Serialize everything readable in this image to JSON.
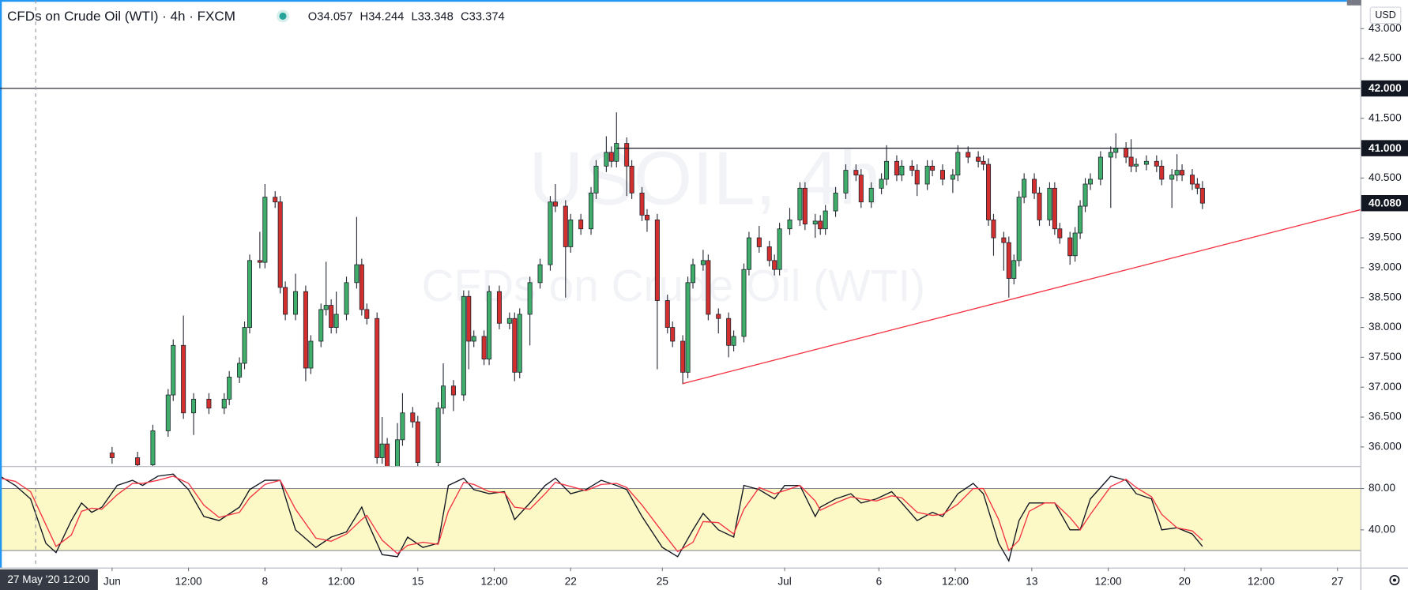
{
  "chart_data": [
    {
      "type": "candlestick",
      "title": "CFDs on Crude Oil (WTI) · 4h · FXCM",
      "ohlc_legend": [
        {
          "label": "O",
          "value": 34.057
        },
        {
          "label": "H",
          "value": 34.244
        },
        {
          "label": "L",
          "value": 33.348
        },
        {
          "label": "C",
          "value": 33.374
        }
      ],
      "watermark": [
        "USOIL, 4h",
        "CFDs on Crude Oil (WTI)"
      ],
      "currency": "USD",
      "x": [
        0,
        5,
        8,
        11,
        12,
        14,
        16,
        19,
        22,
        23,
        25,
        26,
        27,
        29,
        30,
        32,
        33,
        34,
        36,
        38,
        39,
        41,
        42,
        43,
        44,
        46,
        48,
        49,
        50,
        52,
        53,
        54,
        56,
        57,
        59,
        60,
        64,
        65,
        67,
        69,
        70,
        71,
        73,
        74,
        76,
        78,
        79,
        80,
        82,
        84,
        86,
        87,
        89,
        90,
        92,
        94,
        95,
        97,
        98,
        99,
        101,
        102,
        104,
        105,
        107,
        109,
        110,
        112,
        113,
        114,
        116,
        117,
        119,
        121,
        122,
        124,
        125,
        127,
        129,
        130,
        131,
        133,
        135,
        136,
        138,
        139,
        140,
        142,
        144,
        146,
        147,
        149,
        151,
        152,
        154,
        155,
        157,
        158,
        160,
        161,
        163,
        165,
        166,
        168,
        170,
        171,
        172,
        173,
        175,
        176,
        177,
        178,
        179,
        181,
        182,
        184,
        185,
        186,
        188,
        189,
        190,
        191,
        192,
        194,
        196,
        197,
        199,
        200,
        201,
        203,
        205,
        206,
        208,
        209,
        210,
        212,
        213,
        214
      ],
      "open": [
        35.9,
        35.82,
        35.7,
        36.27,
        36.87,
        37.7,
        36.57,
        36.8,
        36.65,
        36.8,
        37.17,
        37.4,
        38.0,
        39.12,
        39.09,
        40.18,
        40.1,
        38.67,
        38.22,
        38.6,
        37.32,
        37.77,
        38.3,
        38.37,
        38.0,
        38.22,
        38.75,
        39.05,
        38.3,
        38.15,
        35.82,
        36.05,
        35.67,
        36.12,
        36.57,
        36.42,
        35.74,
        36.65,
        37.02,
        36.87,
        38.52,
        37.77,
        37.85,
        37.47,
        38.6,
        38.07,
        38.15,
        37.25,
        38.22,
        38.75,
        39.05,
        40.1,
        40.03,
        39.35,
        39.8,
        39.65,
        40.25,
        40.7,
        40.93,
        40.78,
        41.08,
        40.7,
        40.25,
        39.88,
        39.8,
        38.45,
        38.0,
        37.77,
        37.25,
        38.75,
        39.05,
        39.12,
        38.22,
        38.15,
        37.7,
        37.85,
        38.97,
        39.5,
        39.35,
        39.12,
        38.97,
        39.65,
        39.8,
        40.33,
        39.73,
        39.78,
        39.65,
        39.95,
        40.25,
        40.63,
        40.55,
        40.1,
        40.33,
        40.48,
        40.78,
        40.55,
        40.7,
        40.63,
        40.4,
        40.7,
        40.63,
        40.48,
        40.55,
        40.93,
        40.85,
        40.78,
        40.73,
        39.8,
        39.5,
        39.42,
        38.82,
        39.12,
        40.18,
        40.48,
        40.25,
        39.8,
        40.33,
        39.65,
        39.5,
        39.2,
        39.58,
        40.03,
        40.4,
        40.48,
        40.85,
        40.93,
        41.0,
        40.85,
        40.7,
        40.73,
        40.78,
        40.7,
        40.48,
        40.55,
        40.63,
        40.55,
        40.4,
        40.33
      ],
      "high": [
        36.0,
        35.92,
        36.37,
        36.97,
        37.8,
        38.2,
        36.9,
        36.9,
        36.9,
        37.27,
        37.5,
        38.1,
        39.22,
        39.6,
        40.4,
        40.28,
        40.2,
        38.77,
        38.9,
        38.7,
        37.87,
        38.4,
        39.1,
        38.47,
        38.6,
        38.85,
        39.85,
        39.15,
        38.4,
        38.25,
        36.5,
        36.15,
        36.4,
        36.9,
        36.67,
        36.52,
        36.75,
        37.4,
        37.12,
        38.62,
        38.62,
        37.95,
        37.95,
        38.7,
        38.7,
        38.25,
        38.25,
        38.32,
        38.85,
        39.15,
        40.2,
        40.4,
        40.13,
        39.9,
        39.9,
        40.35,
        40.8,
        41.2,
        41.03,
        41.6,
        41.18,
        40.8,
        40.35,
        39.98,
        39.9,
        38.55,
        38.1,
        37.87,
        38.85,
        39.15,
        39.3,
        39.22,
        38.32,
        38.25,
        37.95,
        39.07,
        39.6,
        39.7,
        39.45,
        39.22,
        39.75,
        40.0,
        40.43,
        40.43,
        39.9,
        39.88,
        40.05,
        40.35,
        40.73,
        40.73,
        40.65,
        40.43,
        40.58,
        41.05,
        40.88,
        40.8,
        40.8,
        40.73,
        40.8,
        40.8,
        40.73,
        40.65,
        41.05,
        41.03,
        40.95,
        40.88,
        40.83,
        39.9,
        39.6,
        39.52,
        39.22,
        40.28,
        40.58,
        40.58,
        40.35,
        40.43,
        40.43,
        39.75,
        39.6,
        39.68,
        40.13,
        40.5,
        40.58,
        40.95,
        41.03,
        41.25,
        41.1,
        41.15,
        40.83,
        40.88,
        40.88,
        40.8,
        40.65,
        40.9,
        40.73,
        40.65,
        40.5,
        40.45
      ],
      "low": [
        35.72,
        35.6,
        35.6,
        36.17,
        36.77,
        36.47,
        36.2,
        36.55,
        36.55,
        36.7,
        37.07,
        37.3,
        37.9,
        38.99,
        38.99,
        40.0,
        38.57,
        38.12,
        38.12,
        37.1,
        37.22,
        37.67,
        38.2,
        37.9,
        37.9,
        38.12,
        38.65,
        38.2,
        38.05,
        35.72,
        35.72,
        35.57,
        35.57,
        36.02,
        36.32,
        35.64,
        35.64,
        36.55,
        36.6,
        36.77,
        37.3,
        37.67,
        37.37,
        37.37,
        37.97,
        37.97,
        37.1,
        37.15,
        37.7,
        38.65,
        38.95,
        39.93,
        38.5,
        39.25,
        39.55,
        39.55,
        40.15,
        40.6,
        40.68,
        40.68,
        40.2,
        40.15,
        39.78,
        39.6,
        37.3,
        37.9,
        37.67,
        37.05,
        37.15,
        38.65,
        38.95,
        38.12,
        37.9,
        37.5,
        37.6,
        37.75,
        38.87,
        39.25,
        39.02,
        38.87,
        38.87,
        39.55,
        39.7,
        39.63,
        39.5,
        39.55,
        39.55,
        39.85,
        40.15,
        40.45,
        40.0,
        40.0,
        40.23,
        40.38,
        40.45,
        40.45,
        40.53,
        40.2,
        40.3,
        40.53,
        40.38,
        40.25,
        40.45,
        40.75,
        40.68,
        40.63,
        39.7,
        39.2,
        38.95,
        38.5,
        38.72,
        39.02,
        40.08,
        40.15,
        39.7,
        39.7,
        39.55,
        39.4,
        39.05,
        39.1,
        39.48,
        39.93,
        40.3,
        40.38,
        40.0,
        40.83,
        40.75,
        40.6,
        40.6,
        40.63,
        40.6,
        40.38,
        40.0,
        40.45,
        40.45,
        40.3,
        40.23,
        39.98
      ],
      "close": [
        35.82,
        35.7,
        36.27,
        36.87,
        37.7,
        36.57,
        36.8,
        36.65,
        36.8,
        37.17,
        37.4,
        38.0,
        39.12,
        39.09,
        40.18,
        40.1,
        38.67,
        38.22,
        38.6,
        37.32,
        37.77,
        38.3,
        38.37,
        38.0,
        38.22,
        38.75,
        39.05,
        38.3,
        38.15,
        35.82,
        36.05,
        35.67,
        36.12,
        36.57,
        36.42,
        35.74,
        36.65,
        37.02,
        36.87,
        38.52,
        37.77,
        37.85,
        37.47,
        38.6,
        38.07,
        38.15,
        37.25,
        38.22,
        38.75,
        39.05,
        40.1,
        40.03,
        39.35,
        39.8,
        39.65,
        40.25,
        40.7,
        40.93,
        40.78,
        41.08,
        40.7,
        40.25,
        39.88,
        39.8,
        38.45,
        38.0,
        37.77,
        37.25,
        38.75,
        39.05,
        39.12,
        38.22,
        38.15,
        37.7,
        37.85,
        38.97,
        39.5,
        39.35,
        39.12,
        38.97,
        39.65,
        39.8,
        40.33,
        39.73,
        39.78,
        39.65,
        39.95,
        40.25,
        40.63,
        40.55,
        40.1,
        40.33,
        40.48,
        40.78,
        40.55,
        40.7,
        40.63,
        40.4,
        40.7,
        40.63,
        40.48,
        40.55,
        40.93,
        40.85,
        40.78,
        40.73,
        39.8,
        39.5,
        39.42,
        38.82,
        39.12,
        40.18,
        40.48,
        40.25,
        39.8,
        40.33,
        39.65,
        39.5,
        39.2,
        39.58,
        40.03,
        40.4,
        40.48,
        40.85,
        40.93,
        41.0,
        40.85,
        40.7,
        40.73,
        40.78,
        40.7,
        40.48,
        40.55,
        40.63,
        40.55,
        40.4,
        40.33,
        40.08
      ],
      "up_color": "#3fae6a",
      "down_color": "#d32f2f",
      "xlim": [
        -22,
        245
      ],
      "ylim": [
        35.68,
        43.48
      ],
      "yticks": [
        {
          "value": 43,
          "label": "43.000"
        },
        {
          "value": 42.5,
          "label": "42.500"
        },
        {
          "value": 41.5,
          "label": "41.500"
        },
        {
          "value": 40.5,
          "label": "40.500"
        },
        {
          "value": 39.5,
          "label": "39.500"
        },
        {
          "value": 39,
          "label": "39.000"
        },
        {
          "value": 38.5,
          "label": "38.500"
        },
        {
          "value": 38,
          "label": "38.000"
        },
        {
          "value": 37.5,
          "label": "37.500"
        },
        {
          "value": 37,
          "label": "37.000"
        },
        {
          "value": 36.5,
          "label": "36.500"
        },
        {
          "value": 36,
          "label": "36.000"
        }
      ],
      "xticks": [
        {
          "value": 0,
          "label": "Jun"
        },
        {
          "value": 15,
          "label": "12:00"
        },
        {
          "value": 30,
          "label": "8"
        },
        {
          "value": 45,
          "label": "12:00"
        },
        {
          "value": 60,
          "label": "15"
        },
        {
          "value": 75,
          "label": "12:00"
        },
        {
          "value": 90,
          "label": "22"
        },
        {
          "value": 108,
          "label": "25"
        },
        {
          "value": 132,
          "label": "Jul"
        },
        {
          "value": 150.5,
          "label": "6"
        },
        {
          "value": 165.5,
          "label": "12:00"
        },
        {
          "value": 180.5,
          "label": "13"
        },
        {
          "value": 195.5,
          "label": "12:00"
        },
        {
          "value": 210.5,
          "label": "20"
        },
        {
          "value": 225.5,
          "label": "12:00"
        },
        {
          "value": 240.5,
          "label": "27"
        }
      ],
      "price_lines": [
        {
          "value": 42,
          "label": "42.000"
        },
        {
          "value": 41,
          "label": "41.000",
          "from": 99
        }
      ],
      "last_price": {
        "value": 40.08,
        "label": "40.080"
      },
      "trend_line": {
        "x": [
          112,
          245
        ],
        "y": [
          37.06,
          39.97
        ],
        "color": "#f23645"
      },
      "crosshair": {
        "x": -15,
        "label": "27 May '20 12:00"
      }
    },
    {
      "type": "line",
      "x": [
        -22,
        -19,
        -16,
        -13,
        -11,
        -8,
        -6,
        -4,
        -2,
        1,
        4,
        6,
        9,
        12,
        15,
        18,
        21,
        25,
        27,
        30,
        33,
        36,
        40,
        43,
        46,
        49,
        50,
        53,
        56,
        58,
        61,
        64,
        66,
        69,
        71,
        74,
        77,
        79,
        82,
        85,
        87,
        90,
        93,
        96,
        99,
        101,
        104,
        108,
        111,
        114,
        116,
        119,
        122,
        124,
        127,
        130,
        132,
        135,
        138,
        139,
        142,
        145,
        147,
        150,
        153,
        155,
        158,
        161,
        163,
        166,
        169,
        171,
        174,
        176,
        178,
        180,
        183,
        185,
        188,
        190,
        192,
        196,
        199,
        201,
        204,
        206,
        209,
        212,
        214
      ],
      "series": [
        {
          "color": "#131722",
          "values": [
            92,
            83,
            70,
            27,
            18,
            49,
            66,
            57,
            62,
            83,
            88,
            83,
            92,
            94,
            79,
            53,
            49,
            62,
            79,
            88,
            88,
            40,
            23,
            33,
            38,
            62,
            49,
            16,
            14,
            33,
            23,
            27,
            83,
            90,
            79,
            75,
            77,
            50,
            66,
            83,
            90,
            75,
            79,
            88,
            83,
            79,
            53,
            23,
            14,
            40,
            56,
            40,
            33,
            83,
            79,
            70,
            83,
            83,
            53,
            62,
            70,
            75,
            66,
            70,
            77,
            66,
            49,
            57,
            53,
            75,
            85,
            75,
            27,
            10,
            49,
            66,
            66,
            66,
            40,
            40,
            70,
            92,
            88,
            75,
            70,
            40,
            42,
            36,
            24
          ]
        },
        {
          "color": "#f23645",
          "values": [
            90,
            87,
            77,
            45,
            24,
            35,
            58,
            61,
            60,
            74,
            85,
            85,
            88,
            92,
            85,
            64,
            52,
            57,
            71,
            84,
            88,
            60,
            32,
            29,
            36,
            50,
            54,
            30,
            17,
            25,
            28,
            26,
            58,
            86,
            84,
            77,
            76,
            62,
            60,
            75,
            86,
            82,
            78,
            84,
            85,
            81,
            64,
            38,
            19,
            28,
            48,
            47,
            36,
            60,
            81,
            75,
            78,
            83,
            68,
            59,
            66,
            72,
            70,
            68,
            73,
            71,
            57,
            54,
            55,
            65,
            80,
            80,
            50,
            20,
            30,
            58,
            66,
            66,
            52,
            40,
            55,
            82,
            89,
            81,
            72,
            55,
            42,
            39,
            30
          ]
        }
      ],
      "ylim": [
        3.5,
        100.9
      ],
      "yticks": [
        {
          "value": 80,
          "label": "80.00"
        },
        {
          "value": 40,
          "label": "40.00"
        }
      ],
      "band": [
        20,
        80
      ],
      "band_color": "#fdf9c6"
    }
  ]
}
